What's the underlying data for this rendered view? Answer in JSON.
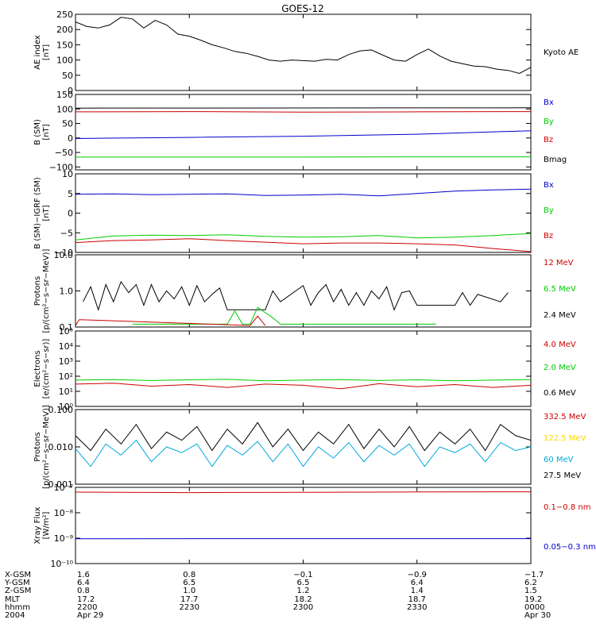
{
  "title": "GOES-12",
  "panels": [
    {
      "id": "ae",
      "ylabel": [
        "AE index",
        "[nT]"
      ],
      "yticks": [
        "250",
        "200",
        "150",
        "100",
        "50",
        "0"
      ],
      "tickvals": [
        250,
        200,
        150,
        100,
        50,
        0
      ],
      "ylim": [
        0,
        250
      ],
      "scale": "linear",
      "legend": [
        {
          "text": "Kyoto AE",
          "color": "#000000"
        }
      ]
    },
    {
      "id": "bsm",
      "ylabel": [
        "B (SM)",
        "[nT]"
      ],
      "yticks": [
        "150",
        "100",
        "50",
        "0",
        "−50",
        "−100"
      ],
      "tickvals": [
        150,
        100,
        50,
        0,
        -50,
        -100
      ],
      "ylim": [
        -110,
        150
      ],
      "scale": "linear",
      "legend": [
        {
          "text": "Bx",
          "color": "#0000cc"
        },
        {
          "text": "By",
          "color": "#00cc00"
        },
        {
          "text": "Bz",
          "color": "#cc0000"
        },
        {
          "text": "Bmag",
          "color": "#000000"
        }
      ]
    },
    {
      "id": "bigrf",
      "ylabel": [
        "B (SM)−IGRF (SM)",
        "[nT]"
      ],
      "yticks": [
        "10",
        "5",
        "0",
        "−5",
        "−10"
      ],
      "tickvals": [
        10,
        5,
        0,
        -5,
        -10
      ],
      "ylim": [
        -10,
        10
      ],
      "scale": "linear",
      "legend": [
        {
          "text": "Bx",
          "color": "#0000cc"
        },
        {
          "text": "By",
          "color": "#00cc00"
        },
        {
          "text": "Bz",
          "color": "#cc0000"
        }
      ]
    },
    {
      "id": "protons_hi",
      "ylabel": [
        "Protons",
        "[p/(cm²−s−sr−MeV)]"
      ],
      "yticks": [
        "10.0",
        "1.0",
        "0.1"
      ],
      "tickvals": [
        10,
        1,
        0.1
      ],
      "ylim": [
        0.1,
        10
      ],
      "scale": "log",
      "legend": [
        {
          "text": "12 MeV",
          "color": "#cc0000"
        },
        {
          "text": "6.5 MeV",
          "color": "#00cc00"
        },
        {
          "text": "2.4 MeV",
          "color": "#000000"
        }
      ]
    },
    {
      "id": "electrons",
      "ylabel": [
        "Electrons",
        "[e/(cm²−s−sr)]"
      ],
      "yticks": [
        "10⁵",
        "10⁴",
        "10³",
        "10²",
        "10¹",
        "10⁰"
      ],
      "tickvals": [
        100000,
        10000,
        1000,
        100,
        10,
        1
      ],
      "ylim": [
        1,
        100000
      ],
      "scale": "log",
      "legend": [
        {
          "text": "4.0 MeV",
          "color": "#cc0000"
        },
        {
          "text": "2.0 MeV",
          "color": "#00cc00"
        },
        {
          "text": "0.6 MeV",
          "color": "#000000"
        }
      ]
    },
    {
      "id": "protons_lo",
      "ylabel": [
        "Protons",
        "[p/(cm²−s−sr−MeV)]"
      ],
      "yticks": [
        "0.100",
        "0.010",
        "0.001"
      ],
      "tickvals": [
        0.1,
        0.01,
        0.001
      ],
      "ylim": [
        0.001,
        0.1
      ],
      "scale": "log",
      "legend": [
        {
          "text": "332.5 MeV",
          "color": "#cc0000"
        },
        {
          "text": "122.5 MeV",
          "color": "#ffd700"
        },
        {
          "text": "60 MeV",
          "color": "#00aadd"
        },
        {
          "text": "27.5 MeV",
          "color": "#000000"
        }
      ]
    },
    {
      "id": "xray",
      "ylabel": [
        "Xray Flux",
        "[W/m²]"
      ],
      "yticks": [
        "10⁻⁷",
        "10⁻⁸",
        "10⁻⁹",
        "10⁻¹⁰"
      ],
      "tickvals": [
        1e-07,
        1e-08,
        1e-09,
        1e-10
      ],
      "ylim": [
        1e-10,
        1e-07
      ],
      "scale": "log",
      "legend": [
        {
          "text": "0.1−0.8 nm",
          "color": "#cc0000"
        },
        {
          "text": "0.05−0.3 nm",
          "color": "#0000cc"
        }
      ]
    }
  ],
  "xaxis": {
    "rows": [
      {
        "label": "X-GSM",
        "values": [
          "1.6",
          "0.8",
          "−0.1",
          "−0.9",
          "−1.7"
        ]
      },
      {
        "label": "Y-GSM",
        "values": [
          "6.4",
          "6.5",
          "6.5",
          "6.4",
          "6.2"
        ]
      },
      {
        "label": "Z-GSM",
        "values": [
          "0.8",
          "1.0",
          "1.2",
          "1.4",
          "1.5"
        ]
      },
      {
        "label": "MLT",
        "values": [
          "17.2",
          "17.7",
          "18.2",
          "18.7",
          "19.2"
        ]
      },
      {
        "label": "hhmm",
        "values": [
          "2200",
          "2230",
          "2300",
          "2330",
          "0000"
        ]
      },
      {
        "label": "2004",
        "values": [
          "Apr 29",
          "",
          "",
          "",
          "Apr 30"
        ]
      }
    ]
  },
  "chart_data": {
    "type": "line",
    "title": "GOES-12",
    "x_unit": "UT hhmm",
    "x_range": [
      "2200",
      "0000"
    ],
    "panels": [
      {
        "name": "ae",
        "ylim": [
          0,
          250
        ],
        "series": [
          {
            "name": "Kyoto AE",
            "color": "#000000",
            "x": [
              0,
              3,
              6,
              9,
              12,
              15,
              18,
              21,
              24,
              27,
              30,
              33,
              36,
              39,
              42,
              45,
              48,
              51,
              54,
              57,
              60,
              63,
              66,
              69,
              72,
              75,
              78,
              81,
              84,
              87,
              90,
              93,
              96,
              99,
              102,
              105,
              108,
              111,
              114,
              117,
              120
            ],
            "y": [
              225,
              210,
              205,
              215,
              240,
              235,
              205,
              230,
              215,
              185,
              178,
              165,
              150,
              140,
              128,
              122,
              112,
              100,
              96,
              100,
              98,
              96,
              102,
              100,
              118,
              130,
              133,
              116,
              100,
              96,
              118,
              136,
              113,
              96,
              88,
              80,
              78,
              70,
              66,
              56,
              76
            ]
          }
        ]
      },
      {
        "name": "bsm",
        "ylim": [
          -110,
          150
        ],
        "series": [
          {
            "name": "Bmag",
            "color": "#000000",
            "x": [
              0,
              120
            ],
            "y": [
              103,
              104
            ]
          },
          {
            "name": "Bz",
            "color": "#cc0000",
            "x": [
              0,
              30,
              60,
              90,
              120
            ],
            "y": [
              90,
              91,
              89,
              90,
              91
            ]
          },
          {
            "name": "Bx",
            "color": "#0000cc",
            "x": [
              0,
              30,
              60,
              90,
              120
            ],
            "y": [
              -2,
              2,
              6,
              13,
              25
            ]
          },
          {
            "name": "By",
            "color": "#00cc00",
            "x": [
              0,
              30,
              60,
              90,
              120
            ],
            "y": [
              -66,
              -66,
              -66,
              -65,
              -65
            ]
          }
        ]
      },
      {
        "name": "bigrf",
        "ylim": [
          -10,
          10
        ],
        "series": [
          {
            "name": "Bx",
            "color": "#0000cc",
            "x": [
              0,
              10,
              20,
              30,
              40,
              50,
              60,
              70,
              80,
              90,
              100,
              110,
              120
            ],
            "y": [
              4.8,
              4.9,
              4.7,
              4.8,
              4.9,
              4.5,
              4.6,
              4.8,
              4.4,
              5.0,
              5.6,
              5.9,
              6.1
            ]
          },
          {
            "name": "By",
            "color": "#00cc00",
            "x": [
              0,
              10,
              20,
              30,
              40,
              50,
              60,
              70,
              80,
              90,
              100,
              110,
              120
            ],
            "y": [
              -6.8,
              -5.8,
              -5.6,
              -5.7,
              -5.5,
              -5.9,
              -6.1,
              -6.0,
              -5.7,
              -6.3,
              -6.1,
              -5.7,
              -5.2
            ]
          },
          {
            "name": "Bz",
            "color": "#cc0000",
            "x": [
              0,
              10,
              20,
              30,
              40,
              50,
              60,
              70,
              80,
              90,
              100,
              110,
              120
            ],
            "y": [
              -7.5,
              -7.0,
              -6.8,
              -6.5,
              -7.0,
              -7.4,
              -7.8,
              -7.6,
              -7.6,
              -7.8,
              -8.1,
              -9.0,
              -9.8
            ]
          }
        ]
      },
      {
        "name": "protons_hi",
        "ylim": [
          0.1,
          10
        ],
        "series": [
          {
            "name": "2.4 MeV",
            "color": "#000000",
            "x": [
              2,
              4,
              6,
              8,
              10,
              12,
              14,
              16,
              18,
              20,
              22,
              24,
              26,
              28,
              30,
              32,
              34,
              36,
              38,
              40,
              50,
              52,
              54,
              60,
              62,
              64,
              66,
              68,
              70,
              72,
              74,
              76,
              78,
              80,
              82,
              84,
              86,
              88,
              90,
              100,
              102,
              104,
              106,
              112,
              114
            ],
            "y": [
              0.5,
              1.3,
              0.3,
              1.5,
              0.5,
              1.8,
              0.9,
              1.5,
              0.4,
              1.5,
              0.5,
              1.0,
              0.6,
              1.3,
              0.4,
              1.4,
              0.5,
              0.8,
              1.2,
              0.3,
              0.3,
              1.0,
              0.5,
              1.4,
              0.4,
              0.9,
              1.5,
              0.5,
              1.1,
              0.4,
              0.9,
              0.4,
              1.0,
              0.6,
              1.3,
              0.3,
              0.9,
              1.0,
              0.4,
              0.4,
              0.9,
              0.4,
              0.8,
              0.5,
              0.9
            ]
          },
          {
            "name": "6.5 MeV",
            "color": "#00cc00",
            "x": [
              15,
              16,
              40,
              42,
              44,
              46,
              48,
              50,
              52,
              54,
              56,
              62,
              75,
              80,
              85,
              95
            ],
            "y": [
              0.12,
              0.12,
              0.12,
              0.28,
              0.12,
              0.12,
              0.35,
              0.25,
              0.18,
              0.12,
              0.12,
              0.12,
              0.12,
              0.12,
              0.12,
              0.12
            ]
          },
          {
            "name": "12 MeV",
            "color": "#cc0000",
            "x": [
              0,
              1,
              46,
              48,
              50
            ],
            "y": [
              0.11,
              0.16,
              0.11,
              0.2,
              0.11
            ]
          }
        ]
      },
      {
        "name": "electrons",
        "ylim": [
          1,
          100000
        ],
        "series": [
          {
            "name": "2.0 MeV",
            "color": "#00cc00",
            "x": [
              0,
              10,
              20,
              30,
              40,
              50,
              60,
              70,
              80,
              90,
              100,
              110,
              120
            ],
            "y": [
              55,
              60,
              52,
              58,
              62,
              50,
              55,
              60,
              52,
              58,
              50,
              55,
              60
            ]
          },
          {
            "name": "4.0 MeV",
            "color": "#cc0000",
            "x": [
              0,
              10,
              20,
              30,
              40,
              50,
              60,
              70,
              80,
              90,
              100,
              110,
              120
            ],
            "y": [
              30,
              35,
              22,
              28,
              18,
              30,
              25,
              15,
              32,
              20,
              28,
              18,
              25
            ]
          }
        ]
      },
      {
        "name": "protons_lo",
        "ylim": [
          0.001,
          0.1
        ],
        "series": [
          {
            "name": "27.5 MeV",
            "color": "#000000",
            "x": [
              0,
              4,
              8,
              12,
              16,
              20,
              24,
              28,
              32,
              36,
              40,
              44,
              48,
              52,
              56,
              60,
              64,
              68,
              72,
              76,
              80,
              84,
              88,
              92,
              96,
              100,
              104,
              108,
              112,
              116,
              120
            ],
            "y": [
              0.02,
              0.008,
              0.03,
              0.012,
              0.04,
              0.009,
              0.025,
              0.015,
              0.035,
              0.008,
              0.03,
              0.012,
              0.045,
              0.01,
              0.03,
              0.008,
              0.025,
              0.012,
              0.04,
              0.009,
              0.03,
              0.01,
              0.035,
              0.008,
              0.025,
              0.012,
              0.03,
              0.008,
              0.04,
              0.02,
              0.015
            ]
          },
          {
            "name": "60 MeV",
            "color": "#00aadd",
            "x": [
              0,
              4,
              8,
              12,
              16,
              20,
              24,
              28,
              32,
              36,
              40,
              44,
              48,
              52,
              56,
              60,
              64,
              68,
              72,
              76,
              80,
              84,
              88,
              92,
              96,
              100,
              104,
              108,
              112,
              116,
              120
            ],
            "y": [
              0.009,
              0.003,
              0.012,
              0.006,
              0.015,
              0.004,
              0.01,
              0.007,
              0.012,
              0.003,
              0.011,
              0.006,
              0.014,
              0.004,
              0.012,
              0.003,
              0.01,
              0.005,
              0.013,
              0.004,
              0.011,
              0.006,
              0.012,
              0.003,
              0.01,
              0.007,
              0.012,
              0.004,
              0.013,
              0.008,
              0.01
            ]
          }
        ]
      },
      {
        "name": "xray",
        "ylim": [
          1e-10,
          1e-07
        ],
        "series": [
          {
            "name": "0.1−0.8 nm",
            "color": "#cc0000",
            "x": [
              0,
              30,
              60,
              90,
              120
            ],
            "y": [
              6.5e-08,
              6.2e-08,
              6.4e-08,
              6.6e-08,
              6.7e-08
            ]
          },
          {
            "name": "0.05−0.3 nm",
            "color": "#0000cc",
            "x": [
              0,
              120
            ],
            "y": [
              9.5e-10,
              9.6e-10
            ]
          }
        ]
      }
    ]
  }
}
